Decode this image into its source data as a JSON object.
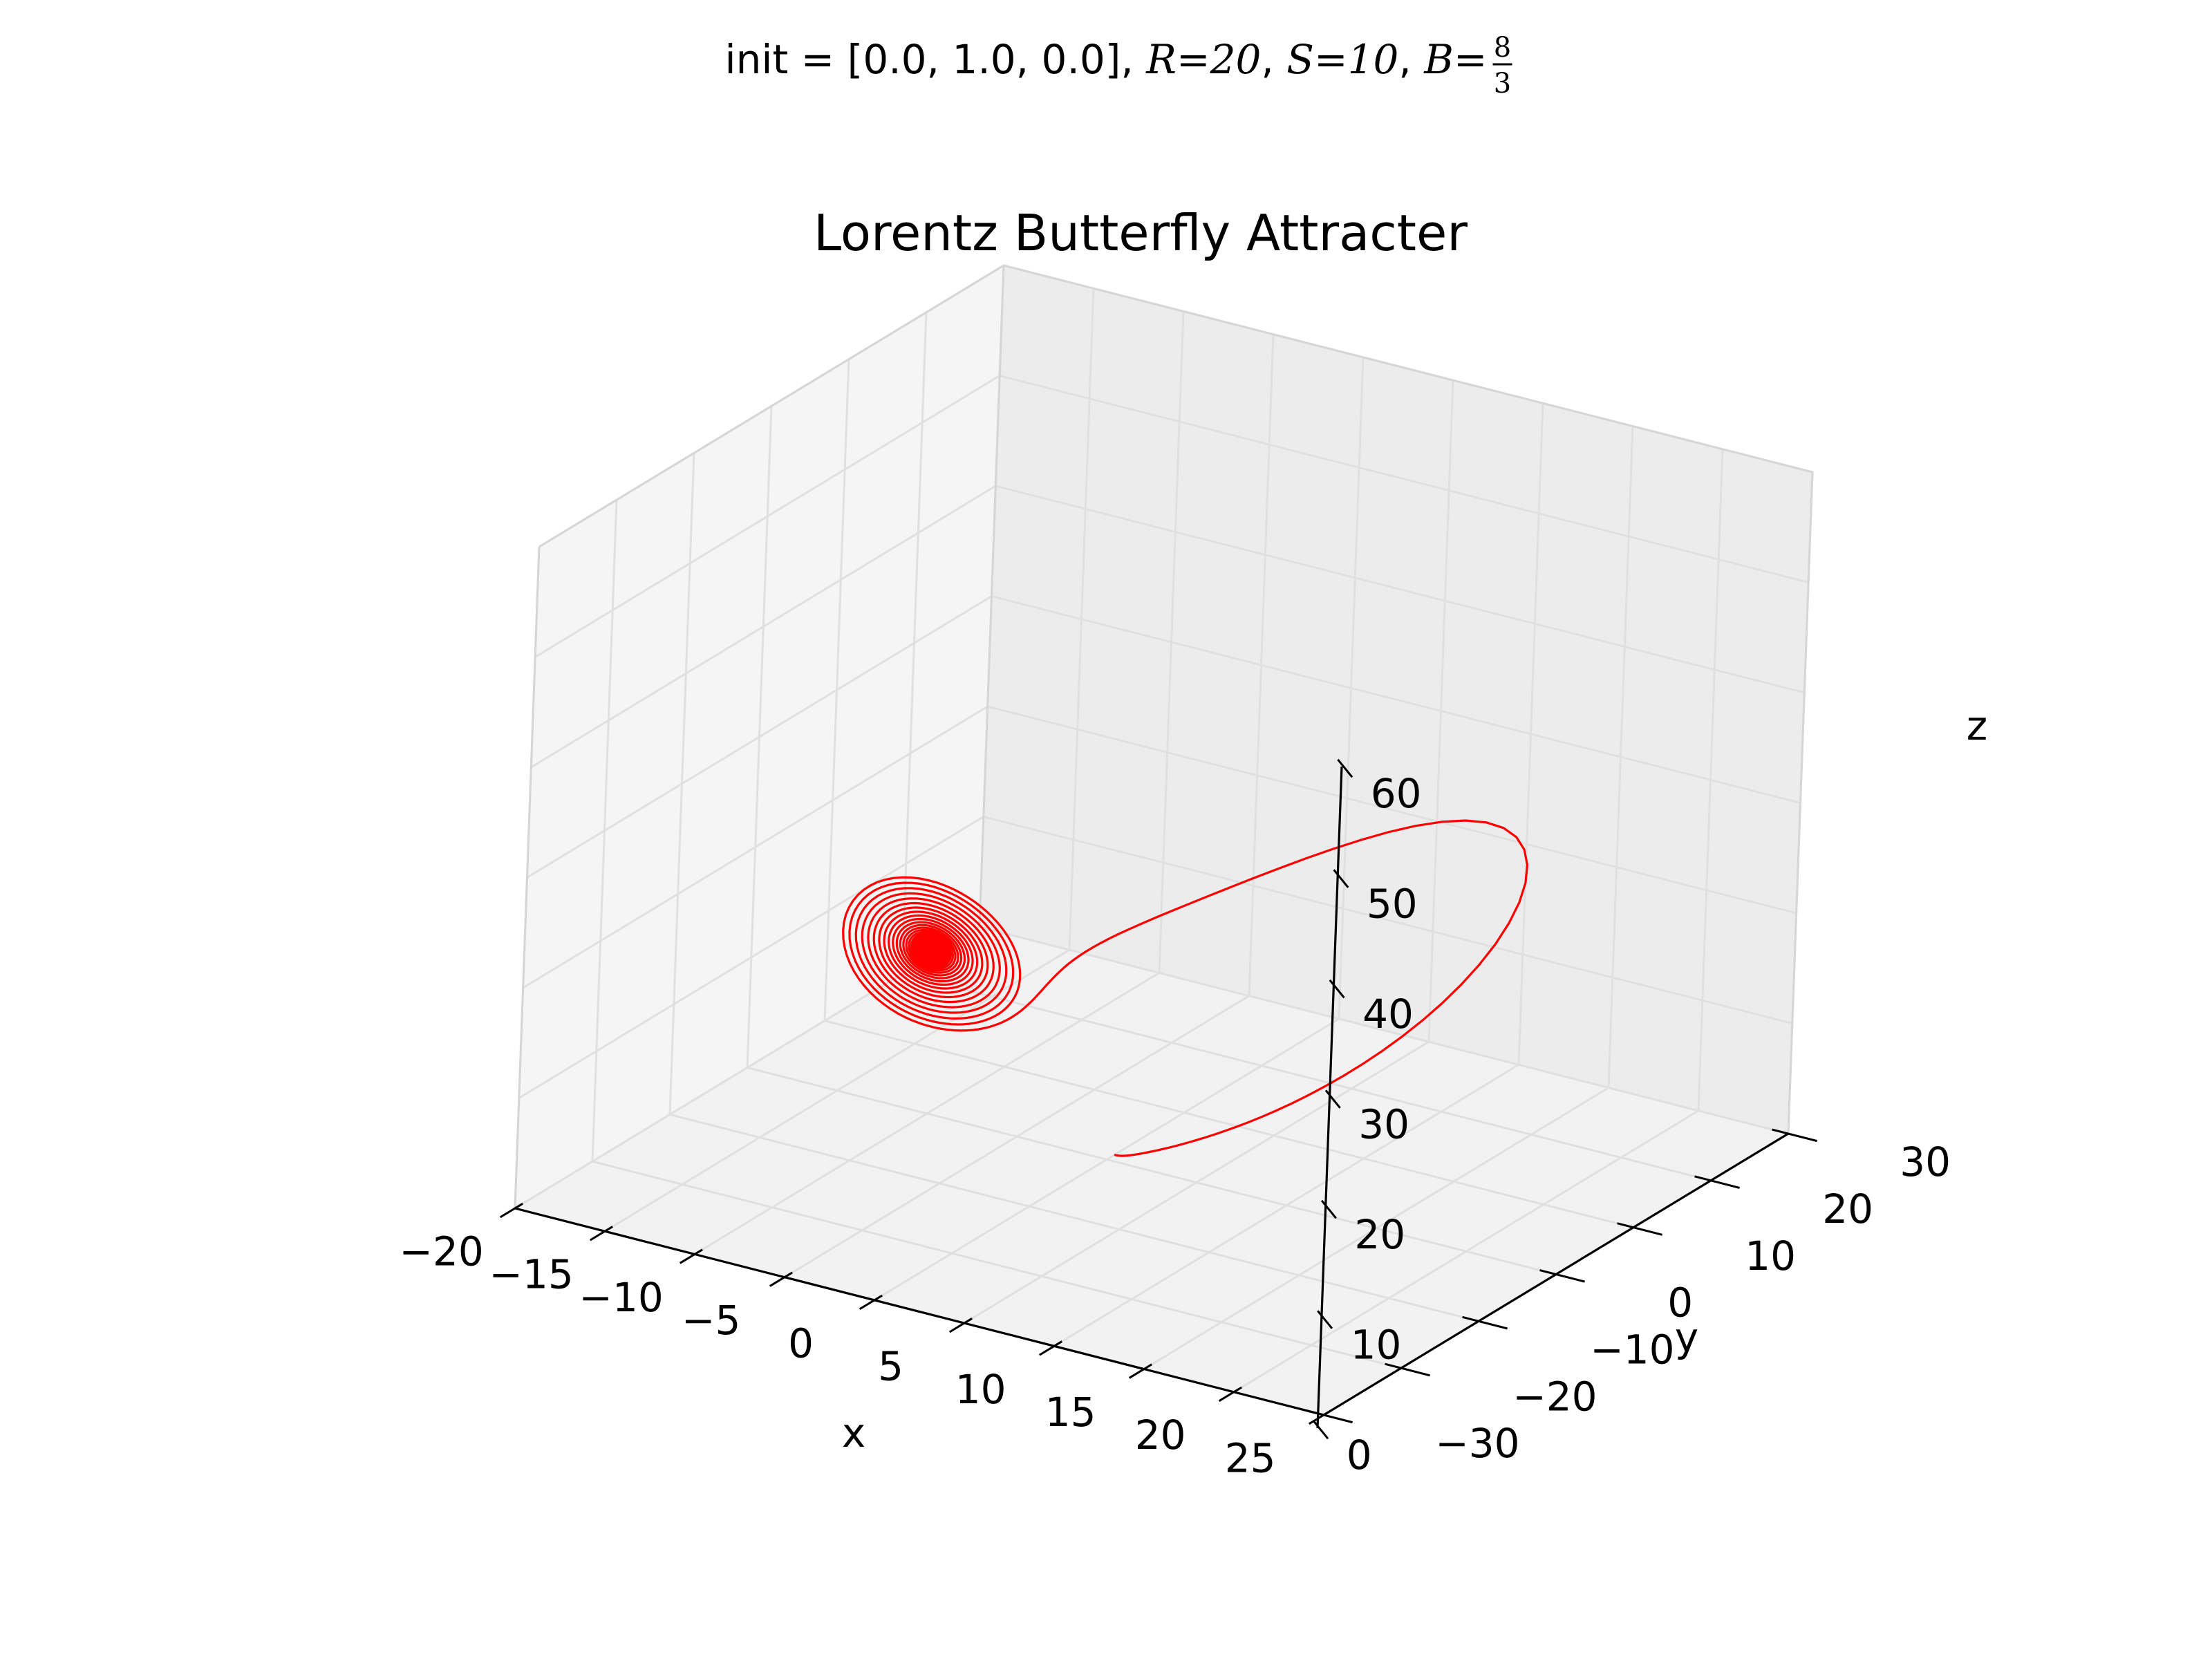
{
  "figure": {
    "suptitle_text": "init = [0.0, 1.0, 0.0], ",
    "suptitle_math": [
      {
        "symbol": "R",
        "value": "20"
      },
      {
        "symbol": "S",
        "value": "10"
      },
      {
        "symbol": "B",
        "numerator": "8",
        "denominator": "3"
      }
    ]
  },
  "chart_data": {
    "type": "line",
    "projection": "3d",
    "title": "Lorentz Butterfly Attracter",
    "xlabel": "x",
    "ylabel": "y",
    "zlabel": "z",
    "xlim": [
      -20,
      25
    ],
    "ylim": [
      -30,
      30
    ],
    "zlim": [
      0,
      60
    ],
    "xticks": [
      -20,
      -15,
      -10,
      -5,
      0,
      5,
      10,
      15,
      20,
      25
    ],
    "yticks": [
      -30,
      -20,
      -10,
      0,
      10,
      20,
      30
    ],
    "zticks": [
      0,
      10,
      20,
      30,
      40,
      50,
      60
    ],
    "grid": true,
    "series": [
      {
        "color": "#ff0000",
        "model": "lorenz",
        "initial_state": [
          0.0,
          1.0,
          0.0
        ],
        "parameters": {
          "R": 20,
          "S": 10,
          "B": 2.6666666667
        }
      }
    ]
  }
}
